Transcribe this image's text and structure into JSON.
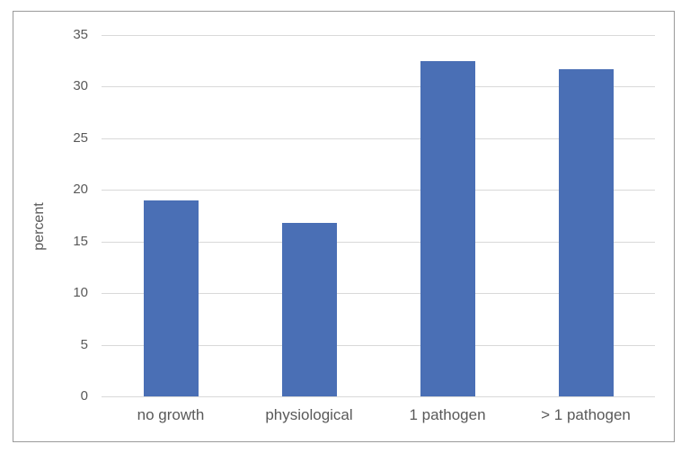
{
  "chart_data": {
    "type": "bar",
    "title": "",
    "xlabel": "",
    "ylabel": "percent",
    "categories": [
      "no growth",
      "physiological",
      "1 pathogen",
      "> 1 pathogen"
    ],
    "values": [
      19.0,
      16.8,
      32.5,
      31.7
    ],
    "ylim": [
      0,
      35
    ],
    "yticks": [
      0,
      5,
      10,
      15,
      20,
      25,
      30,
      35
    ],
    "grid": true,
    "legend": null,
    "bar_color": "#4a6fb5"
  }
}
